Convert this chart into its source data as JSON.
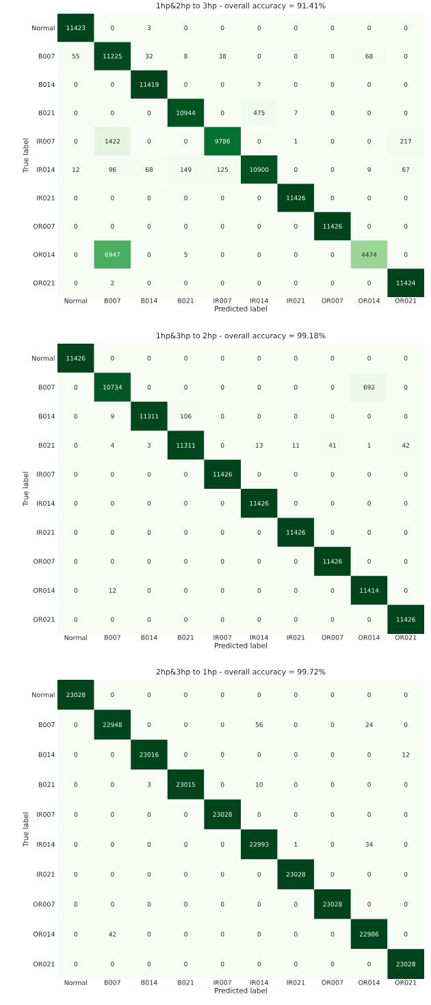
{
  "chart_data": [
    {
      "type": "heatmap",
      "title": "1hp&2hp to 3hp - overall accuracy = 91.41%",
      "xlabel": "Predicted label",
      "ylabel": "True label",
      "data_labels": true,
      "categories": [
        "Normal",
        "B007",
        "B014",
        "B021",
        "IR007",
        "IR014",
        "IR021",
        "OR007",
        "OR014",
        "OR021"
      ],
      "y_categories": [
        "Normal",
        "B007",
        "B014",
        "B021",
        "IR007",
        "IR014",
        "IR021",
        "OR007",
        "OR014",
        "OR021"
      ],
      "cells": [
        [
          11423,
          0,
          3,
          0,
          0,
          0,
          0,
          0,
          0,
          0
        ],
        [
          55,
          11225,
          32,
          8,
          38,
          0,
          0,
          0,
          68,
          0
        ],
        [
          0,
          0,
          11419,
          0,
          0,
          7,
          0,
          0,
          0,
          0
        ],
        [
          0,
          0,
          0,
          10944,
          0,
          475,
          7,
          0,
          0,
          0
        ],
        [
          0,
          1422,
          0,
          0,
          9786,
          0,
          1,
          0,
          0,
          217
        ],
        [
          12,
          96,
          68,
          149,
          125,
          10900,
          0,
          0,
          9,
          67
        ],
        [
          0,
          0,
          0,
          0,
          0,
          0,
          11426,
          0,
          0,
          0
        ],
        [
          0,
          0,
          0,
          0,
          0,
          0,
          0,
          11426,
          0,
          0
        ],
        [
          0,
          6947,
          0,
          5,
          0,
          0,
          0,
          0,
          4474,
          0
        ],
        [
          0,
          2,
          0,
          0,
          0,
          0,
          0,
          0,
          0,
          11424
        ]
      ]
    },
    {
      "type": "heatmap",
      "title": "1hp&3hp to 2hp - overall accuracy = 99.18%",
      "xlabel": "Predicted label",
      "ylabel": "True label",
      "data_labels": true,
      "categories": [
        "Normal",
        "B007",
        "B014",
        "B021",
        "IR007",
        "IR014",
        "IR021",
        "OR007",
        "OR014",
        "OR021"
      ],
      "y_categories": [
        "Normal",
        "B007",
        "B014",
        "B021",
        "IR007",
        "IR014",
        "IR021",
        "OR007",
        "OR014",
        "OR021"
      ],
      "cells": [
        [
          11426,
          0,
          0,
          0,
          0,
          0,
          0,
          0,
          0,
          0
        ],
        [
          0,
          10734,
          0,
          0,
          0,
          0,
          0,
          0,
          692,
          0
        ],
        [
          0,
          9,
          11311,
          106,
          0,
          0,
          0,
          0,
          0,
          0
        ],
        [
          0,
          4,
          3,
          11311,
          0,
          13,
          11,
          41,
          1,
          42
        ],
        [
          0,
          0,
          0,
          0,
          11426,
          0,
          0,
          0,
          0,
          0
        ],
        [
          0,
          0,
          0,
          0,
          0,
          11426,
          0,
          0,
          0,
          0
        ],
        [
          0,
          0,
          0,
          0,
          0,
          0,
          11426,
          0,
          0,
          0
        ],
        [
          0,
          0,
          0,
          0,
          0,
          0,
          0,
          11426,
          0,
          0
        ],
        [
          0,
          12,
          0,
          0,
          0,
          0,
          0,
          0,
          11414,
          0
        ],
        [
          0,
          0,
          0,
          0,
          0,
          0,
          0,
          0,
          0,
          11426
        ]
      ]
    },
    {
      "type": "heatmap",
      "title": "2hp&3hp to 1hp - overall accuracy = 99.72%",
      "xlabel": "Predicted label",
      "ylabel": "True label",
      "data_labels": true,
      "categories": [
        "Normal",
        "B007",
        "B014",
        "B021",
        "IR007",
        "IR014",
        "IR021",
        "OR007",
        "OR014",
        "OR021"
      ],
      "y_categories": [
        "Normal",
        "B007",
        "B014",
        "B021",
        "IR007",
        "IR014",
        "IR021",
        "OR007",
        "OR014",
        "OR021"
      ],
      "cells": [
        [
          23028,
          0,
          0,
          0,
          0,
          0,
          0,
          0,
          0,
          0
        ],
        [
          0,
          22948,
          0,
          0,
          0,
          56,
          0,
          0,
          24,
          0
        ],
        [
          0,
          0,
          23016,
          0,
          0,
          0,
          0,
          0,
          0,
          12
        ],
        [
          0,
          0,
          3,
          23015,
          0,
          10,
          0,
          0,
          0,
          0
        ],
        [
          0,
          0,
          0,
          0,
          23028,
          0,
          0,
          0,
          0,
          0
        ],
        [
          0,
          0,
          0,
          0,
          0,
          22993,
          1,
          0,
          34,
          0
        ],
        [
          0,
          0,
          0,
          0,
          0,
          0,
          23028,
          0,
          0,
          0
        ],
        [
          0,
          0,
          0,
          0,
          0,
          0,
          0,
          23028,
          0,
          0
        ],
        [
          0,
          42,
          0,
          0,
          0,
          0,
          0,
          0,
          22986,
          0
        ],
        [
          0,
          0,
          0,
          0,
          0,
          0,
          0,
          0,
          0,
          23028
        ]
      ]
    }
  ]
}
